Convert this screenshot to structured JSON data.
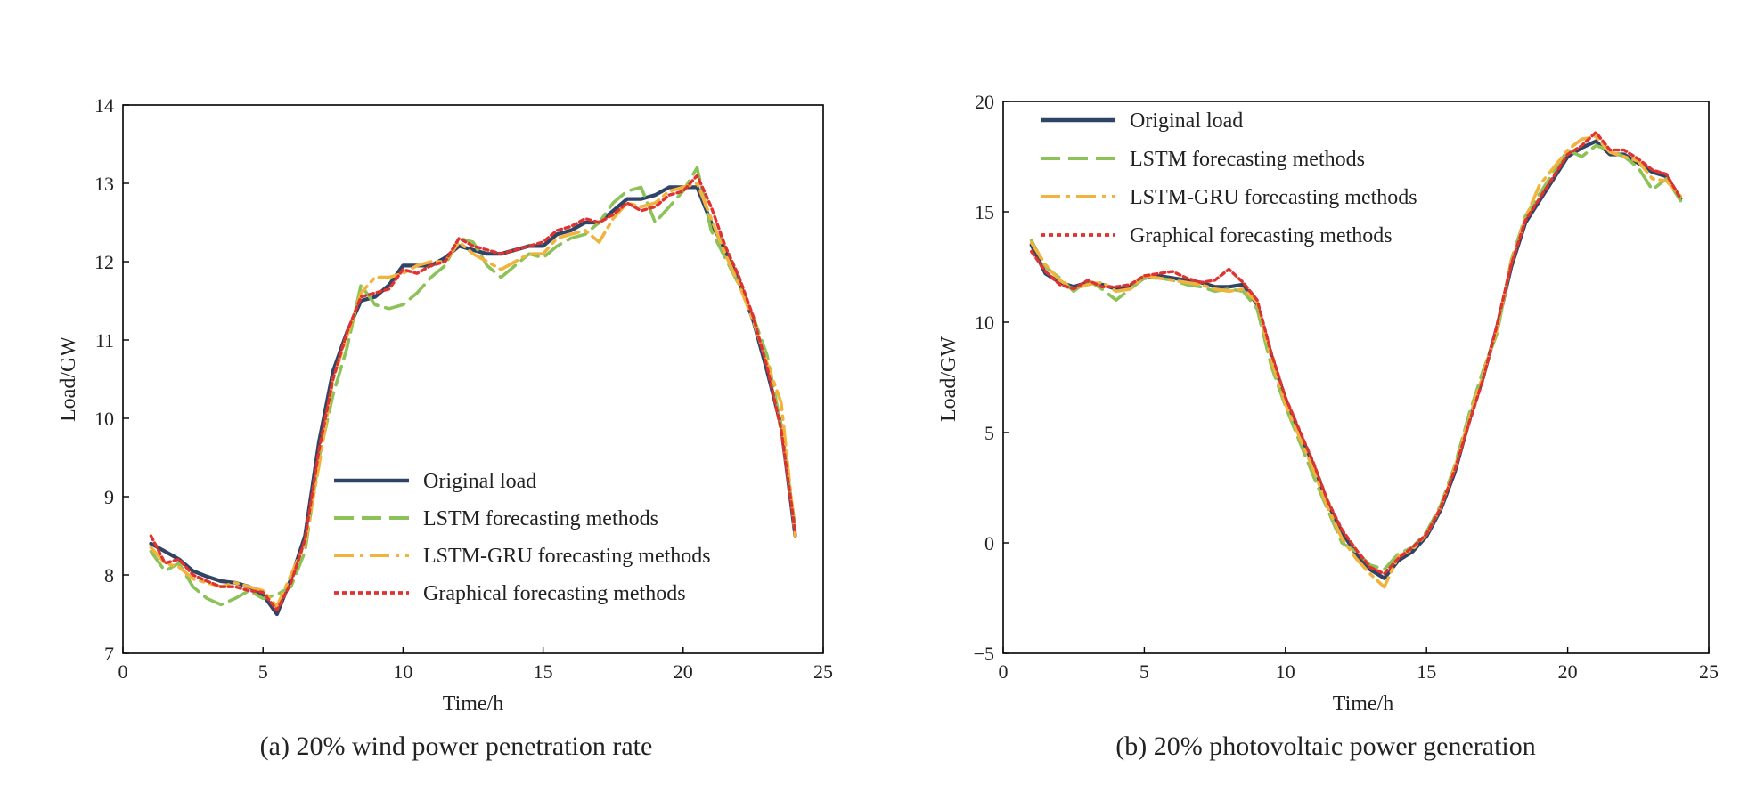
{
  "colors": {
    "original": "#2f4466",
    "lstm": "#8cc258",
    "lstm_gru": "#f2b33d",
    "graphical": "#e0322e"
  },
  "chart_data": [
    {
      "type": "line",
      "caption": "(a) 20% wind power penetration rate",
      "xlabel": "Time/h",
      "ylabel": "Load/GW",
      "xlim": [
        0,
        25
      ],
      "ylim": [
        7,
        14
      ],
      "xticks": [
        "0",
        "5",
        "10",
        "15",
        "20",
        "25"
      ],
      "yticks": [
        "7",
        "8",
        "9",
        "10",
        "11",
        "12",
        "13",
        "14"
      ],
      "legend_position": "lower-center",
      "x": [
        1,
        1.5,
        2,
        2.5,
        3,
        3.5,
        4,
        4.5,
        5,
        5.5,
        6,
        6.5,
        7,
        7.5,
        8,
        8.5,
        9,
        9.5,
        10,
        10.5,
        11,
        11.5,
        12,
        12.5,
        13,
        13.5,
        14,
        14.5,
        15,
        15.5,
        16,
        16.5,
        17,
        17.5,
        18,
        18.5,
        19,
        19.5,
        20,
        20.5,
        21,
        21.5,
        22,
        22.5,
        23,
        23.5,
        24
      ],
      "series": [
        {
          "name": "Original load",
          "key": "original",
          "style": "solid",
          "values": [
            8.4,
            8.3,
            8.2,
            8.05,
            7.98,
            7.92,
            7.9,
            7.85,
            7.75,
            7.5,
            7.95,
            8.5,
            9.7,
            10.6,
            11.1,
            11.5,
            11.55,
            11.7,
            11.95,
            11.95,
            11.95,
            12.05,
            12.2,
            12.15,
            12.1,
            12.1,
            12.15,
            12.2,
            12.2,
            12.35,
            12.4,
            12.5,
            12.5,
            12.65,
            12.8,
            12.8,
            12.85,
            12.95,
            12.95,
            12.95,
            12.5,
            12.15,
            11.75,
            11.25,
            10.6,
            9.9,
            8.5
          ]
        },
        {
          "name": "LSTM forecasting methods",
          "key": "lstm",
          "style": "dashed",
          "values": [
            8.3,
            8.05,
            8.15,
            7.85,
            7.7,
            7.62,
            7.7,
            7.8,
            7.7,
            7.75,
            7.85,
            8.3,
            9.5,
            10.3,
            10.9,
            11.7,
            11.45,
            11.4,
            11.45,
            11.6,
            11.8,
            11.95,
            12.3,
            12.25,
            11.95,
            11.8,
            11.95,
            12.1,
            12.05,
            12.2,
            12.3,
            12.35,
            12.5,
            12.75,
            12.9,
            12.95,
            12.5,
            12.7,
            12.9,
            13.2,
            12.4,
            12.05,
            11.7,
            11.3,
            10.8,
            9.9,
            8.6
          ]
        },
        {
          "name": "LSTM-GRU forecasting methods",
          "key": "lstm_gru",
          "style": "dashdot",
          "values": [
            8.35,
            8.15,
            8.1,
            7.95,
            7.9,
            7.85,
            7.9,
            7.85,
            7.8,
            7.6,
            8.0,
            8.4,
            9.4,
            10.5,
            11.05,
            11.6,
            11.8,
            11.8,
            11.85,
            11.95,
            12.0,
            12.0,
            12.25,
            12.1,
            12.0,
            11.9,
            12.0,
            12.1,
            12.1,
            12.3,
            12.35,
            12.4,
            12.25,
            12.55,
            12.75,
            12.7,
            12.75,
            12.9,
            12.95,
            13.0,
            12.55,
            12.1,
            11.7,
            11.25,
            10.7,
            10.2,
            8.5
          ]
        },
        {
          "name": "Graphical forecasting methods",
          "key": "graphical",
          "style": "dotted",
          "values": [
            8.5,
            8.15,
            8.2,
            8.0,
            7.92,
            7.85,
            7.85,
            7.8,
            7.78,
            7.55,
            7.9,
            8.45,
            9.6,
            10.5,
            11.1,
            11.55,
            11.6,
            11.65,
            11.9,
            11.85,
            11.95,
            12.0,
            12.3,
            12.2,
            12.15,
            12.1,
            12.15,
            12.2,
            12.25,
            12.4,
            12.45,
            12.55,
            12.5,
            12.6,
            12.75,
            12.65,
            12.7,
            12.85,
            12.9,
            13.1,
            12.7,
            12.2,
            11.8,
            11.3,
            10.65,
            9.85,
            8.55
          ]
        }
      ]
    },
    {
      "type": "line",
      "caption": "(b) 20% photovoltaic power generation",
      "xlabel": "Time/h",
      "ylabel": "Load/GW",
      "xlim": [
        0,
        25
      ],
      "ylim": [
        -5,
        20
      ],
      "xticks": [
        "0",
        "5",
        "10",
        "15",
        "20",
        "25"
      ],
      "yticks": [
        "−5",
        "0",
        "5",
        "10",
        "15",
        "20"
      ],
      "legend_position": "top-left",
      "x": [
        1,
        1.5,
        2,
        2.5,
        3,
        3.5,
        4,
        4.5,
        5,
        5.5,
        6,
        6.5,
        7,
        7.5,
        8,
        8.5,
        9,
        9.5,
        10,
        10.5,
        11,
        11.5,
        12,
        12.5,
        13,
        13.5,
        14,
        14.5,
        15,
        15.5,
        16,
        16.5,
        17,
        17.5,
        18,
        18.5,
        19,
        19.5,
        20,
        20.5,
        21,
        21.5,
        22,
        22.5,
        23,
        23.5,
        24
      ],
      "series": [
        {
          "name": "Original load",
          "key": "original",
          "style": "solid",
          "values": [
            13.5,
            12.2,
            11.8,
            11.6,
            11.8,
            11.7,
            11.5,
            11.6,
            12.0,
            12.1,
            12.0,
            11.9,
            11.8,
            11.6,
            11.6,
            11.7,
            10.8,
            8.5,
            6.5,
            5.0,
            3.5,
            1.8,
            0.5,
            -0.5,
            -1.2,
            -1.6,
            -0.8,
            -0.4,
            0.3,
            1.5,
            3.2,
            5.5,
            7.5,
            9.8,
            12.5,
            14.5,
            15.5,
            16.5,
            17.5,
            17.9,
            18.2,
            17.6,
            17.6,
            17.2,
            16.8,
            16.6,
            15.6
          ]
        },
        {
          "name": "LSTM forecasting methods",
          "key": "lstm",
          "style": "dashed",
          "values": [
            13.7,
            12.5,
            12.0,
            11.4,
            11.9,
            11.5,
            11.0,
            11.5,
            12.0,
            12.0,
            11.9,
            11.7,
            11.6,
            11.4,
            11.5,
            11.4,
            10.6,
            8.0,
            6.2,
            4.6,
            3.0,
            1.5,
            0.0,
            -0.4,
            -1.0,
            -1.2,
            -0.5,
            -0.2,
            0.5,
            1.7,
            3.5,
            5.8,
            7.8,
            9.5,
            12.8,
            14.8,
            15.8,
            16.8,
            17.8,
            17.5,
            18.0,
            17.8,
            17.5,
            17.0,
            16.0,
            16.5,
            15.5
          ]
        },
        {
          "name": "LSTM-GRU forecasting methods",
          "key": "lstm_gru",
          "style": "dashdot",
          "values": [
            13.6,
            12.6,
            11.9,
            11.5,
            11.7,
            11.8,
            11.4,
            11.5,
            12.1,
            12.0,
            11.9,
            11.8,
            11.7,
            11.5,
            11.4,
            11.5,
            10.9,
            8.3,
            6.3,
            4.8,
            3.3,
            1.6,
            0.2,
            -0.7,
            -1.4,
            -2.0,
            -0.6,
            -0.3,
            0.4,
            1.6,
            3.4,
            5.6,
            7.6,
            9.7,
            12.7,
            14.7,
            16.2,
            17.0,
            17.8,
            18.3,
            18.4,
            17.7,
            17.5,
            17.3,
            16.5,
            16.4,
            15.7
          ]
        },
        {
          "name": "Graphical forecasting methods",
          "key": "graphical",
          "style": "dotted",
          "values": [
            13.2,
            12.3,
            11.7,
            11.5,
            11.9,
            11.6,
            11.6,
            11.7,
            12.1,
            12.2,
            12.3,
            12.0,
            11.8,
            11.9,
            12.4,
            11.8,
            11.0,
            8.6,
            6.6,
            5.1,
            3.6,
            1.9,
            0.6,
            -0.3,
            -1.1,
            -1.4,
            -0.7,
            -0.2,
            0.4,
            1.6,
            3.3,
            5.4,
            7.4,
            9.9,
            12.6,
            14.6,
            15.6,
            16.6,
            17.6,
            18.0,
            18.6,
            17.8,
            17.8,
            17.4,
            16.9,
            16.7,
            15.6
          ]
        }
      ]
    }
  ]
}
